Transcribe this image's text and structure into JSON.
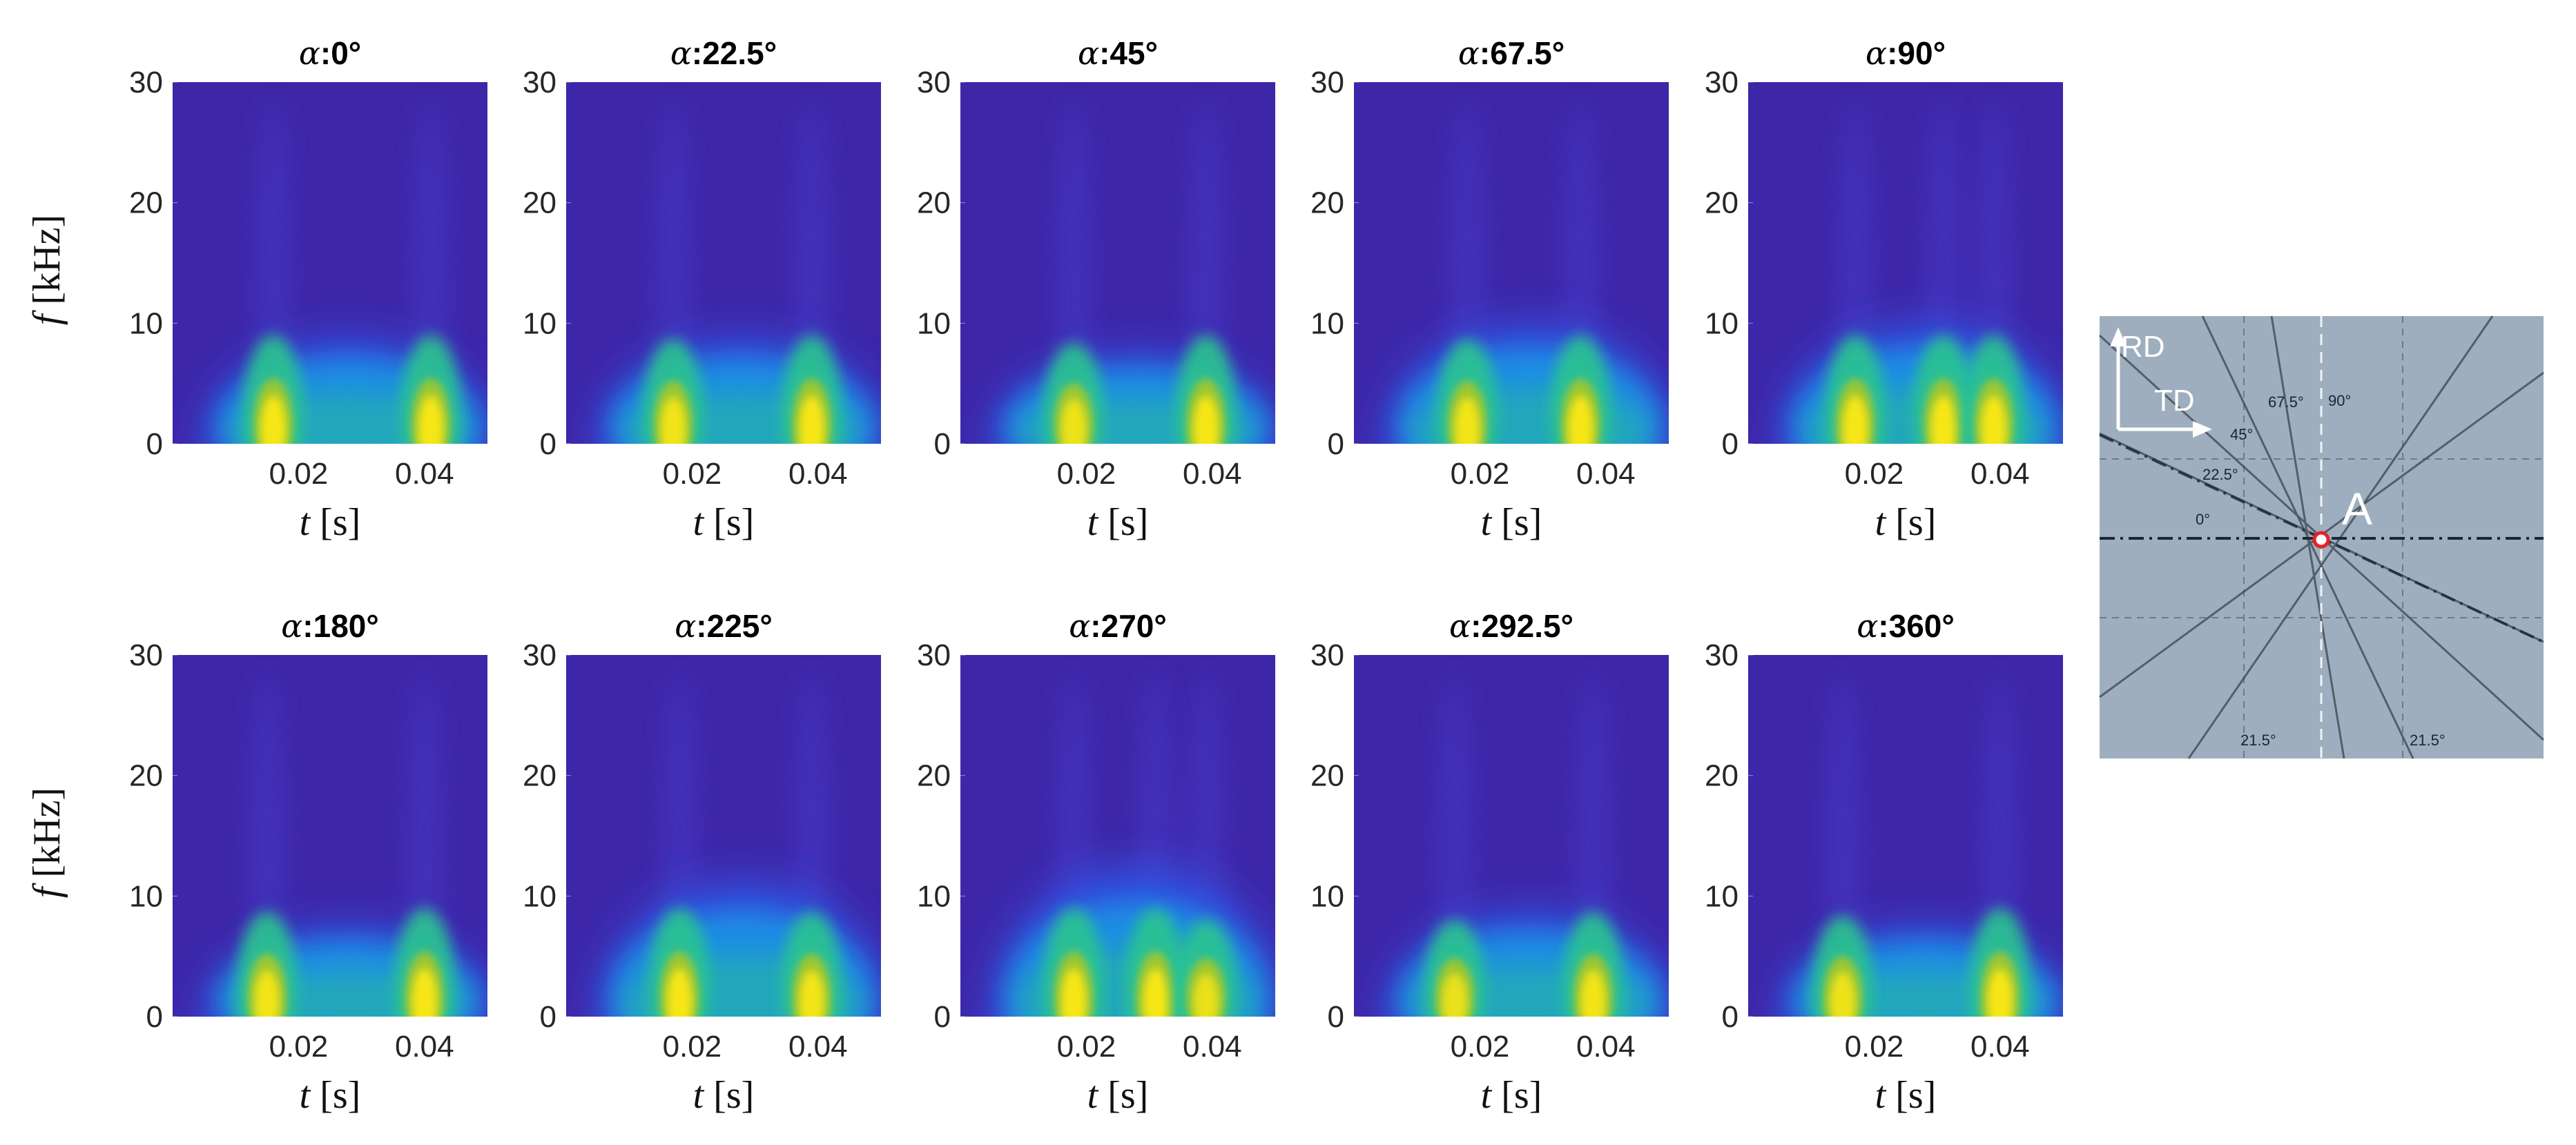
{
  "chart_data": {
    "type": "heatmap",
    "description_kind": "spectrogram",
    "xlabel_var": "t",
    "xlabel_unit": "[s]",
    "ylabel_var": "f",
    "ylabel_unit": "[kHz]",
    "xlim": [
      0,
      0.05
    ],
    "ylim": [
      0,
      30
    ],
    "x_ticks": [
      0.02,
      0.04
    ],
    "x_tick_labels": [
      "0.02",
      "0.04"
    ],
    "y_ticks": [
      0,
      10,
      20,
      30
    ],
    "y_tick_labels": [
      "0",
      "10",
      "20",
      "30"
    ],
    "colormap": [
      "#3e26a8",
      "#2f58e8",
      "#17a2e3",
      "#2cc58f",
      "#a3c72f",
      "#f7e619"
    ],
    "panels": [
      {
        "label": "α:0°",
        "greek": "α",
        "angle": ":0°",
        "bursts": [
          {
            "t": 0.016,
            "level": 1.0
          },
          {
            "t": 0.041,
            "level": 1.0
          }
        ],
        "band_top_khz": 7
      },
      {
        "label": "α:22.5°",
        "greek": "α",
        "angle": ":22.5°",
        "bursts": [
          {
            "t": 0.017,
            "level": 0.95
          },
          {
            "t": 0.039,
            "level": 1.0
          }
        ],
        "band_top_khz": 7
      },
      {
        "label": "α:45°",
        "greek": "α",
        "angle": ":45°",
        "bursts": [
          {
            "t": 0.018,
            "level": 0.9
          },
          {
            "t": 0.039,
            "level": 1.0
          }
        ],
        "band_top_khz": 6
      },
      {
        "label": "α:67.5°",
        "greek": "α",
        "angle": ":67.5°",
        "bursts": [
          {
            "t": 0.018,
            "level": 0.95
          },
          {
            "t": 0.036,
            "level": 1.0
          }
        ],
        "band_top_khz": 8
      },
      {
        "label": "α:90°",
        "greek": "α",
        "angle": ":90°",
        "bursts": [
          {
            "t": 0.017,
            "level": 1.0
          },
          {
            "t": 0.031,
            "level": 1.0
          },
          {
            "t": 0.039,
            "level": 1.0
          }
        ],
        "band_top_khz": 8
      },
      {
        "label": "α:180°",
        "greek": "α",
        "angle": ":180°",
        "bursts": [
          {
            "t": 0.015,
            "level": 0.95
          },
          {
            "t": 0.04,
            "level": 1.0
          }
        ],
        "band_top_khz": 6
      },
      {
        "label": "α:225°",
        "greek": "α",
        "angle": ":225°",
        "bursts": [
          {
            "t": 0.018,
            "level": 1.0
          },
          {
            "t": 0.039,
            "level": 0.95
          }
        ],
        "band_top_khz": 9
      },
      {
        "label": "α:270°",
        "greek": "α",
        "angle": ":270°",
        "bursts": [
          {
            "t": 0.018,
            "level": 1.0
          },
          {
            "t": 0.031,
            "level": 1.0
          },
          {
            "t": 0.039,
            "level": 0.85
          }
        ],
        "band_top_khz": 10
      },
      {
        "label": "α:292.5°",
        "greek": "α",
        "angle": ":292.5°",
        "bursts": [
          {
            "t": 0.016,
            "level": 0.85
          },
          {
            "t": 0.038,
            "level": 0.95
          }
        ],
        "band_top_khz": 7
      },
      {
        "label": "α:360°",
        "greek": "α",
        "angle": ":360°",
        "bursts": [
          {
            "t": 0.015,
            "level": 0.9
          },
          {
            "t": 0.04,
            "level": 1.0
          }
        ],
        "band_top_khz": 6
      }
    ]
  },
  "photo": {
    "label_rd": "RD",
    "label_td": "TD",
    "point_label": "A",
    "angle_labels": [
      "0°",
      "22.5°",
      "45°",
      "67.5°",
      "90°"
    ],
    "bottom_labels": [
      "21.5°",
      "21.5°"
    ]
  }
}
